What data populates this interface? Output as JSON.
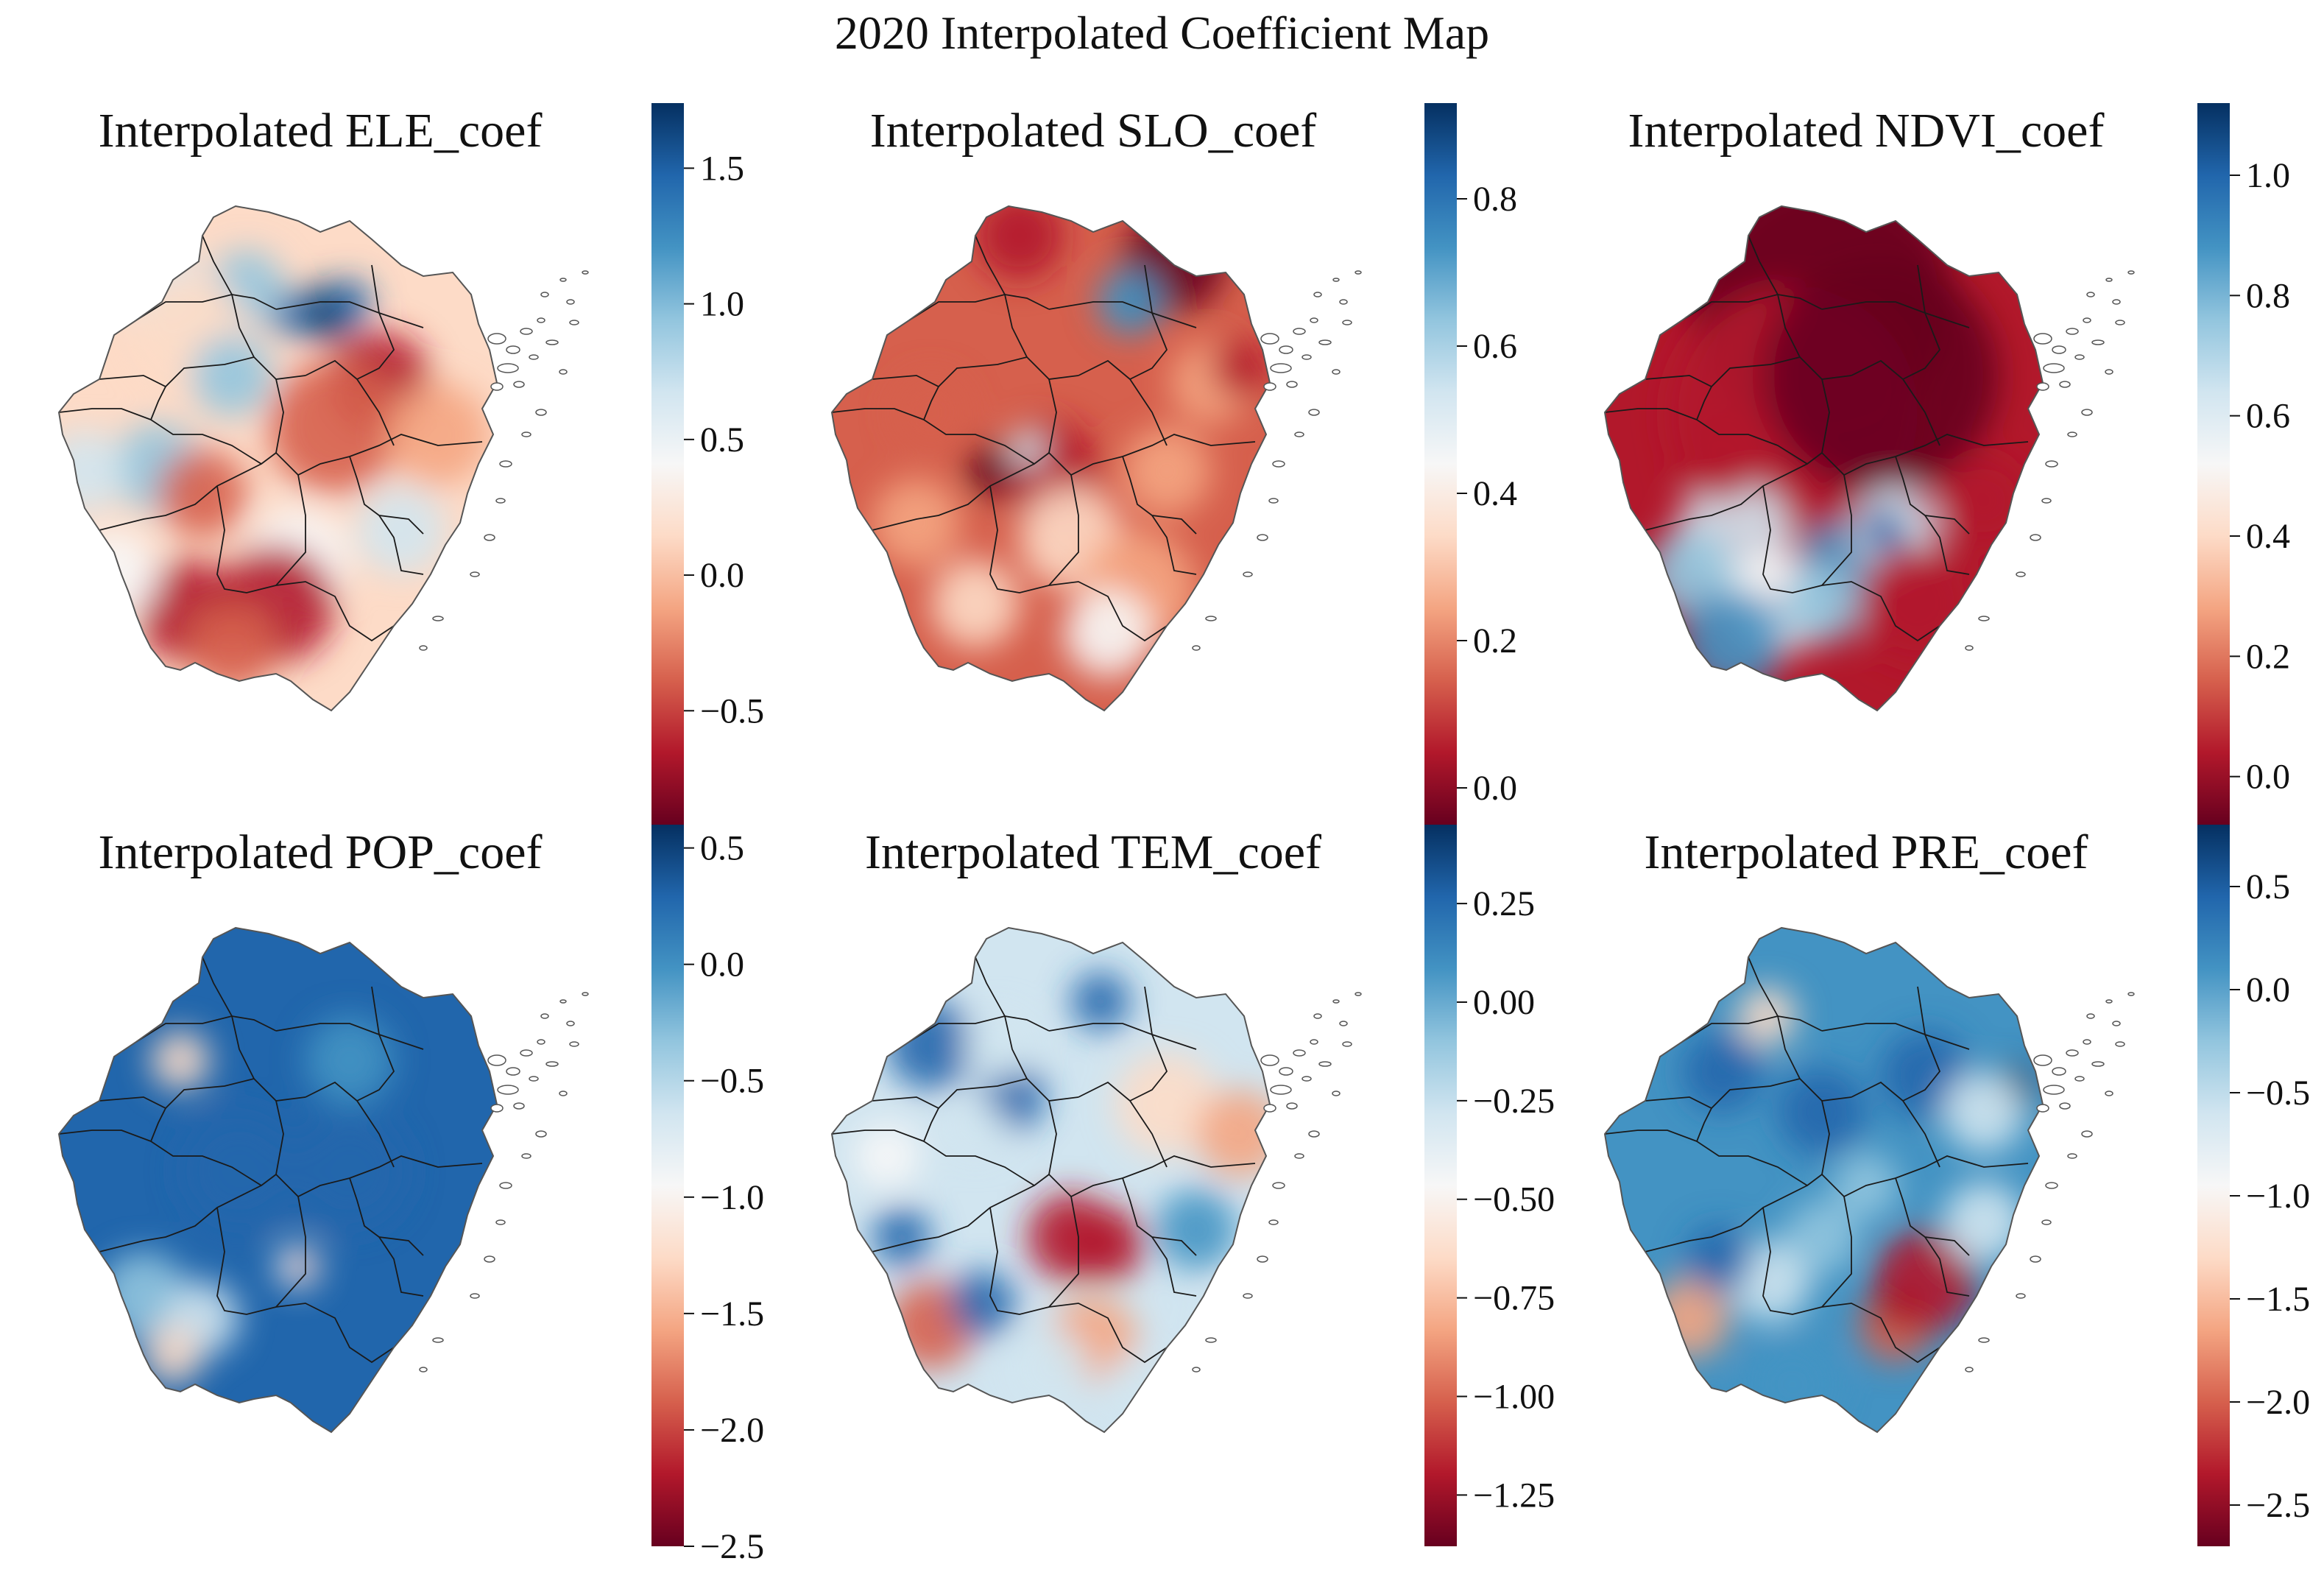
{
  "title": "2020 Interpolated Coefficient Map",
  "colormap": [
    "#67001f",
    "#b2182b",
    "#d6604d",
    "#f4a582",
    "#fddbc7",
    "#f7f7f7",
    "#d1e5f0",
    "#92c5de",
    "#4393c3",
    "#2166ac",
    "#053061"
  ],
  "boundary_color": "#1a1a1a",
  "panels": [
    {
      "title": "Interpolated ELE_coef",
      "range": [
        -0.92,
        1.74
      ],
      "ticks": [
        "1.5",
        "1.0",
        "0.5",
        "0.0",
        "−0.5"
      ],
      "tick_values": [
        1.5,
        1.0,
        0.5,
        0.0,
        -0.5
      ],
      "base": 0.38
    },
    {
      "title": "Interpolated SLO_coef",
      "range": [
        -0.05,
        0.93
      ],
      "ticks": [
        "0.8",
        "0.6",
        "0.4",
        "0.2",
        "0.0"
      ],
      "tick_values": [
        0.8,
        0.6,
        0.4,
        0.2,
        0.0
      ],
      "base": 0.22
    },
    {
      "title": "Interpolated NDVI_coef",
      "range": [
        -0.08,
        1.12
      ],
      "ticks": [
        "1.0",
        "0.8",
        "0.6",
        "0.4",
        "0.2",
        "0.0"
      ],
      "tick_values": [
        1.0,
        0.8,
        0.6,
        0.4,
        0.2,
        0.0
      ],
      "base": 0.05
    },
    {
      "title": "Interpolated POP_coef",
      "range": [
        -2.5,
        0.6
      ],
      "ticks": [
        "0.5",
        "0.0",
        "−0.5",
        "−1.0",
        "−1.5",
        "−2.0",
        "−2.5"
      ],
      "tick_values": [
        0.5,
        0.0,
        -0.5,
        -1.0,
        -1.5,
        -2.0,
        -2.5
      ],
      "base": 0.86
    },
    {
      "title": "Interpolated TEM_coef",
      "range": [
        -1.38,
        0.45
      ],
      "ticks": [
        "0.25",
        "0.00",
        "−0.25",
        "−0.50",
        "−0.75",
        "−1.00",
        "−1.25"
      ],
      "tick_values": [
        0.25,
        0.0,
        -0.25,
        -0.5,
        -0.75,
        -1.0,
        -1.25
      ],
      "base": 0.64
    },
    {
      "title": "Interpolated PRE_coef",
      "range": [
        -2.7,
        0.8
      ],
      "ticks": [
        "0.5",
        "0.0",
        "−0.5",
        "−1.0",
        "−1.5",
        "−2.0",
        "−2.5"
      ],
      "tick_values": [
        0.5,
        0.0,
        -0.5,
        -1.0,
        -1.5,
        -2.0,
        -2.5
      ],
      "base": 0.78
    }
  ]
}
